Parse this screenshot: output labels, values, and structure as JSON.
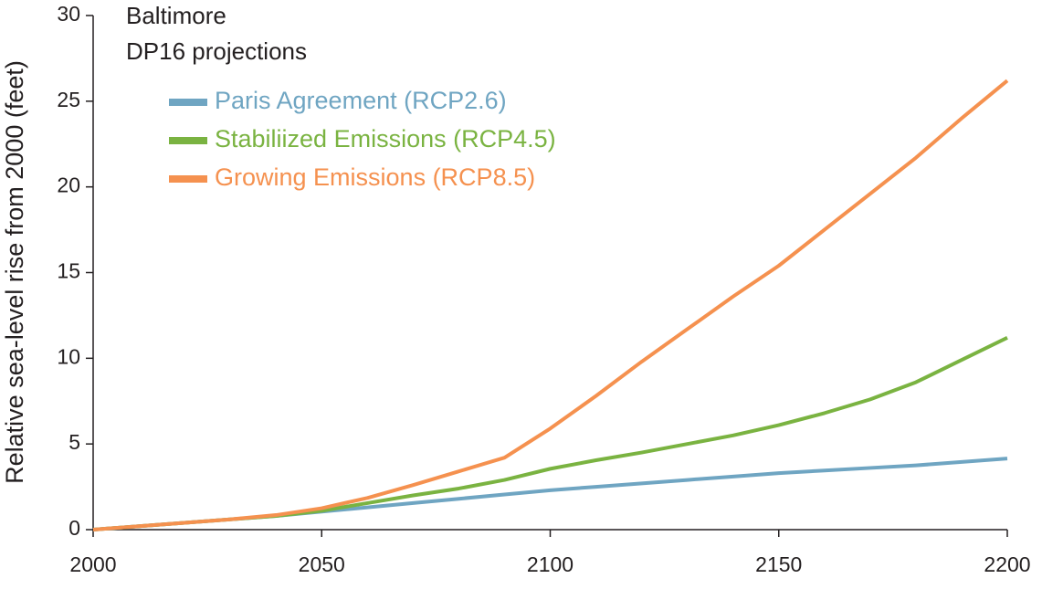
{
  "chart_data": {
    "type": "line",
    "title": "Baltimore",
    "subtitle": "DP16 projections",
    "y_label": "Relative sea-level rise from 2000 (feet)",
    "x": [
      2000,
      2010,
      2020,
      2030,
      2040,
      2050,
      2060,
      2070,
      2080,
      2090,
      2100,
      2110,
      2120,
      2130,
      2140,
      2150,
      2160,
      2170,
      2180,
      2190,
      2200
    ],
    "series": [
      {
        "name": "Paris Agreement (RCP2.6)",
        "color": "#6fa5c2",
        "values": [
          0,
          0.2,
          0.4,
          0.6,
          0.8,
          1.05,
          1.3,
          1.55,
          1.8,
          2.05,
          2.3,
          2.5,
          2.7,
          2.9,
          3.1,
          3.3,
          3.45,
          3.6,
          3.75,
          3.95,
          4.15
        ]
      },
      {
        "name": "Stabiliized Emissions (RCP4.5)",
        "color": "#7ab341",
        "values": [
          0,
          0.2,
          0.4,
          0.6,
          0.8,
          1.1,
          1.55,
          2.0,
          2.4,
          2.9,
          3.55,
          4.05,
          4.5,
          5.0,
          5.5,
          6.1,
          6.8,
          7.6,
          8.6,
          9.9,
          11.2
        ]
      },
      {
        "name": "Growing Emissions (RCP8.5)",
        "color": "#f5914f",
        "values": [
          0,
          0.2,
          0.4,
          0.6,
          0.85,
          1.25,
          1.85,
          2.6,
          3.4,
          4.2,
          5.9,
          7.8,
          9.8,
          11.7,
          13.6,
          15.4,
          17.5,
          19.6,
          21.7,
          24.0,
          26.2
        ]
      }
    ],
    "xlim": [
      2000,
      2200
    ],
    "xticks": [
      2000,
      2050,
      2100,
      2150,
      2200
    ],
    "ylim": [
      0,
      30
    ],
    "yticks": [
      0,
      5,
      10,
      15,
      20,
      25,
      30
    ],
    "grid": false,
    "legend": "upper left"
  }
}
